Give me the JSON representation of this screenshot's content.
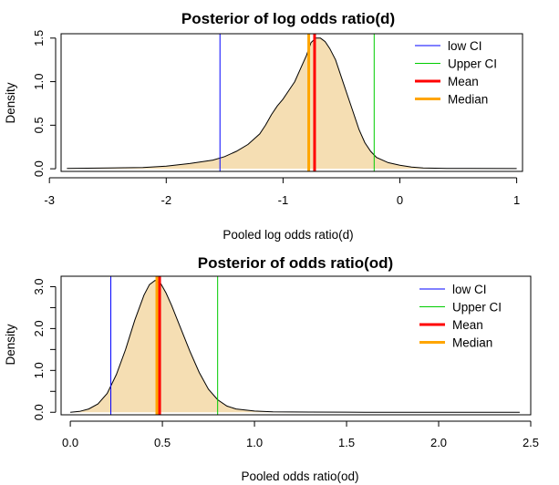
{
  "chart_data": [
    {
      "type": "area",
      "title": "Posterior of log odds ratio(d)",
      "xlabel": "Pooled log odds ratio(d)",
      "ylabel": "Density",
      "xlim": [
        -2.9,
        1.05
      ],
      "ylim": [
        -0.03,
        1.55
      ],
      "xticks": [
        -3,
        -2,
        -1,
        0,
        1
      ],
      "xtick_labels": [
        "-3",
        "-2",
        "-1",
        "0",
        "1"
      ],
      "yticks": [
        0.0,
        0.5,
        1.0,
        1.5
      ],
      "ytick_labels": [
        "0.0",
        "0.5",
        "1.0",
        "1.5"
      ],
      "grid": false,
      "fill_color": "#F5DEB3",
      "density": {
        "x": [
          -2.85,
          -2.5,
          -2.2,
          -2.0,
          -1.8,
          -1.6,
          -1.5,
          -1.4,
          -1.3,
          -1.2,
          -1.15,
          -1.1,
          -1.05,
          -1.0,
          -0.95,
          -0.9,
          -0.85,
          -0.8,
          -0.76,
          -0.72,
          -0.68,
          -0.64,
          -0.6,
          -0.55,
          -0.5,
          -0.45,
          -0.4,
          -0.35,
          -0.3,
          -0.25,
          -0.2,
          -0.1,
          0.0,
          0.1,
          0.2,
          0.4,
          0.6,
          1.0
        ],
        "y": [
          0.005,
          0.01,
          0.015,
          0.03,
          0.06,
          0.1,
          0.14,
          0.2,
          0.28,
          0.4,
          0.5,
          0.62,
          0.72,
          0.8,
          0.9,
          1.0,
          1.15,
          1.3,
          1.45,
          1.5,
          1.5,
          1.46,
          1.38,
          1.25,
          1.05,
          0.85,
          0.65,
          0.45,
          0.3,
          0.2,
          0.13,
          0.07,
          0.04,
          0.02,
          0.01,
          0.005,
          0.003,
          0.002
        ]
      },
      "vlines": [
        {
          "name": "low CI",
          "x": -1.54,
          "color": "#0000FF",
          "width": 1
        },
        {
          "name": "Upper CI",
          "x": -0.22,
          "color": "#00CC00",
          "width": 1
        },
        {
          "name": "Mean",
          "x": -0.73,
          "color": "#FF0000",
          "width": 3
        },
        {
          "name": "Median",
          "x": -0.78,
          "color": "#FFA500",
          "width": 3
        }
      ],
      "legend_position": "top-right"
    },
    {
      "type": "area",
      "title": "Posterior of odds ratio(od)",
      "xlabel": "Pooled odds ratio(od)",
      "ylabel": "Density",
      "xlim": [
        -0.05,
        2.5
      ],
      "ylim": [
        -0.06,
        3.25
      ],
      "xticks": [
        0.0,
        0.5,
        1.0,
        1.5,
        2.0,
        2.5
      ],
      "xtick_labels": [
        "0.0",
        "0.5",
        "1.0",
        "1.5",
        "2.0",
        "2.5"
      ],
      "yticks": [
        0.0,
        1.0,
        2.0,
        3.0
      ],
      "ytick_labels": [
        "0.0",
        "1.0",
        "2.0",
        "3.0"
      ],
      "extra_yticks": [
        0.5,
        1.5,
        2.5
      ],
      "grid": false,
      "fill_color": "#F5DEB3",
      "density": {
        "x": [
          0.0,
          0.05,
          0.1,
          0.15,
          0.2,
          0.25,
          0.3,
          0.35,
          0.4,
          0.43,
          0.46,
          0.49,
          0.52,
          0.55,
          0.6,
          0.65,
          0.7,
          0.75,
          0.8,
          0.85,
          0.9,
          1.0,
          1.1,
          1.3,
          1.6,
          2.0,
          2.44
        ],
        "y": [
          0.0,
          0.02,
          0.08,
          0.2,
          0.45,
          0.9,
          1.5,
          2.2,
          2.8,
          3.05,
          3.15,
          3.08,
          2.85,
          2.55,
          2.0,
          1.45,
          0.95,
          0.55,
          0.3,
          0.15,
          0.08,
          0.03,
          0.01,
          0.005,
          0.002,
          0.001,
          0.0
        ]
      },
      "vlines": [
        {
          "name": "low CI",
          "x": 0.22,
          "color": "#0000FF",
          "width": 1
        },
        {
          "name": "Upper CI",
          "x": 0.8,
          "color": "#00CC00",
          "width": 1
        },
        {
          "name": "Mean",
          "x": 0.485,
          "color": "#FF0000",
          "width": 3
        },
        {
          "name": "Median",
          "x": 0.47,
          "color": "#FFA500",
          "width": 3
        }
      ],
      "legend_position": "top-right"
    }
  ]
}
